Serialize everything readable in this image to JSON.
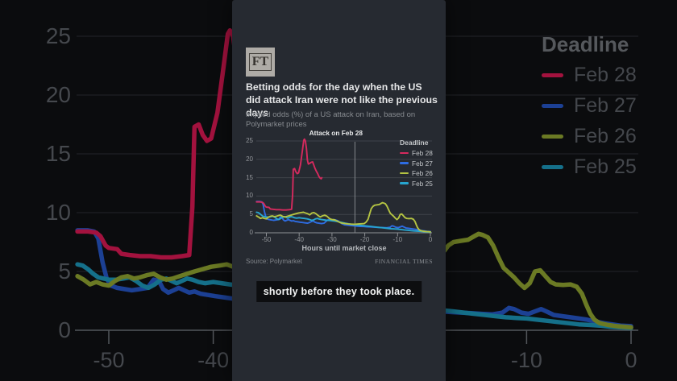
{
  "app": {
    "caption": "shortly before they took place."
  },
  "panel": {
    "logo": "FT",
    "title": "Betting odds for the day when the US did attack Iran were not like the previous days",
    "subtitle": "Implied odds (%) of a US attack on Iran, based on Polymarket prices",
    "source": "Source: Polymarket",
    "brand": "FINANCIAL TIMES"
  },
  "colors": {
    "page_bg": "#0b0c0e",
    "panel_bg": "#262a31",
    "caption_bg": "#0d0e10",
    "grid_main": "#3f434a",
    "axis_main": "#8e9195",
    "grid_bg": "#232529",
    "axis_bg": "#53565b",
    "annotation_line": "#85888d",
    "background_series": [
      "#a3123e",
      "#1c4094",
      "#6b7a24",
      "#15708a"
    ]
  },
  "chart_data": {
    "type": "line",
    "title": "Betting odds for the day when the US did attack Iran were not like the previous days",
    "subtitle": "Implied odds (%) of a US attack on Iran, based on Polymarket prices",
    "xlabel": "Hours until market close",
    "ylabel": "Implied odds (%)",
    "xlim": [
      -53,
      0
    ],
    "ylim": [
      0,
      25
    ],
    "xticks": [
      -50,
      -40,
      -30,
      -20,
      -10,
      0
    ],
    "yticks": [
      0,
      5,
      10,
      15,
      20,
      25
    ],
    "grid": true,
    "legend_title": "Deadline",
    "legend_position": "top-right",
    "annotation": {
      "text": "Attack on Feb 28",
      "x": -23
    },
    "series": [
      {
        "name": "Feb 28",
        "color": "#d62a5e",
        "points": [
          [
            -53,
            8.4
          ],
          [
            -52,
            8.4
          ],
          [
            -51.2,
            8.3
          ],
          [
            -50.8,
            8.0
          ],
          [
            -50.3,
            7.2
          ],
          [
            -50,
            7.0
          ],
          [
            -49.2,
            6.9
          ],
          [
            -48.8,
            6.5
          ],
          [
            -48,
            6.4
          ],
          [
            -47,
            6.3
          ],
          [
            -46,
            6.3
          ],
          [
            -45,
            6.2
          ],
          [
            -44,
            6.2
          ],
          [
            -43,
            6.3
          ],
          [
            -42.3,
            6.4
          ],
          [
            -42,
            10.5
          ],
          [
            -41.8,
            17.3
          ],
          [
            -41.4,
            17.5
          ],
          [
            -41,
            16.6
          ],
          [
            -40.6,
            16.1
          ],
          [
            -40.2,
            16.3
          ],
          [
            -39.6,
            18.5
          ],
          [
            -39,
            22.5
          ],
          [
            -38.6,
            25.2
          ],
          [
            -38.4,
            25.5
          ],
          [
            -38.1,
            25.0
          ],
          [
            -37.8,
            23.0
          ],
          [
            -37.5,
            19.8
          ],
          [
            -37.2,
            18.7
          ],
          [
            -36.8,
            18.9
          ],
          [
            -36.3,
            19.2
          ],
          [
            -35.9,
            19.3
          ],
          [
            -35.6,
            18.6
          ],
          [
            -35.2,
            17.6
          ],
          [
            -34.8,
            16.8
          ],
          [
            -34.4,
            16.2
          ],
          [
            -34,
            15.4
          ],
          [
            -33.6,
            14.9
          ],
          [
            -33.3,
            14.7
          ],
          [
            -33.1,
            15.0
          ]
        ]
      },
      {
        "name": "Feb 27",
        "color": "#2e6ce2",
        "points": [
          [
            -53,
            8.5
          ],
          [
            -52,
            8.5
          ],
          [
            -51.4,
            8.4
          ],
          [
            -51,
            7.8
          ],
          [
            -50.6,
            5.8
          ],
          [
            -50.2,
            4.4
          ],
          [
            -49.8,
            3.8
          ],
          [
            -49.2,
            3.6
          ],
          [
            -48.5,
            3.5
          ],
          [
            -47.8,
            3.4
          ],
          [
            -47,
            3.5
          ],
          [
            -46.3,
            3.6
          ],
          [
            -45.7,
            4.3
          ],
          [
            -45.2,
            4.2
          ],
          [
            -44.8,
            3.5
          ],
          [
            -44.3,
            3.2
          ],
          [
            -43.8,
            3.4
          ],
          [
            -43.3,
            3.6
          ],
          [
            -42.8,
            3.4
          ],
          [
            -42.3,
            3.2
          ],
          [
            -41.8,
            3.3
          ],
          [
            -41.2,
            3.1
          ],
          [
            -40.5,
            3.0
          ],
          [
            -39.8,
            2.9
          ],
          [
            -39,
            2.8
          ],
          [
            -38.2,
            2.7
          ],
          [
            -37.5,
            2.6
          ],
          [
            -36.8,
            2.8
          ],
          [
            -36.2,
            3.1
          ],
          [
            -35.7,
            3.2
          ],
          [
            -35.2,
            2.9
          ],
          [
            -34.6,
            2.7
          ],
          [
            -34,
            2.6
          ],
          [
            -33.2,
            2.5
          ],
          [
            -32.4,
            2.6
          ],
          [
            -31.7,
            3.2
          ],
          [
            -31.2,
            3.5
          ],
          [
            -30.6,
            3.6
          ],
          [
            -30.1,
            3.4
          ],
          [
            -29.6,
            3.6
          ],
          [
            -29,
            3.5
          ],
          [
            -28.2,
            3.3
          ],
          [
            -27.6,
            2.9
          ],
          [
            -27,
            2.5
          ],
          [
            -26.2,
            2.2
          ],
          [
            -25.3,
            2.1
          ],
          [
            -24.3,
            2.0
          ],
          [
            -23.3,
            1.9
          ],
          [
            -22.3,
            1.8
          ],
          [
            -21.3,
            1.75
          ],
          [
            -20.3,
            1.7
          ],
          [
            -19.3,
            1.65
          ],
          [
            -18.3,
            1.6
          ],
          [
            -17.3,
            1.55
          ],
          [
            -16.3,
            1.5
          ],
          [
            -15.3,
            1.45
          ],
          [
            -14.3,
            1.4
          ],
          [
            -13.3,
            1.35
          ],
          [
            -12.3,
            1.5
          ],
          [
            -11.7,
            1.9
          ],
          [
            -11.2,
            1.8
          ],
          [
            -10.5,
            1.5
          ],
          [
            -9.8,
            1.4
          ],
          [
            -9.2,
            1.6
          ],
          [
            -8.6,
            1.8
          ],
          [
            -8.1,
            1.6
          ],
          [
            -7.4,
            1.3
          ],
          [
            -6.6,
            1.2
          ],
          [
            -5.8,
            1.1
          ],
          [
            -5,
            1.0
          ],
          [
            -4.2,
            0.9
          ],
          [
            -3.4,
            0.75
          ],
          [
            -2.6,
            0.6
          ],
          [
            -1.8,
            0.5
          ],
          [
            -1,
            0.4
          ],
          [
            0,
            0.35
          ]
        ]
      },
      {
        "name": "Feb 26",
        "color": "#b4c342",
        "points": [
          [
            -53,
            4.6
          ],
          [
            -52.4,
            4.3
          ],
          [
            -51.8,
            3.9
          ],
          [
            -51.2,
            4.1
          ],
          [
            -50.6,
            3.9
          ],
          [
            -50,
            3.8
          ],
          [
            -49.4,
            4.2
          ],
          [
            -48.8,
            4.5
          ],
          [
            -48.2,
            4.6
          ],
          [
            -47.6,
            4.4
          ],
          [
            -47,
            4.5
          ],
          [
            -46.3,
            4.7
          ],
          [
            -45.7,
            4.8
          ],
          [
            -45.1,
            4.5
          ],
          [
            -44.5,
            4.3
          ],
          [
            -43.9,
            4.4
          ],
          [
            -43.2,
            4.6
          ],
          [
            -42.5,
            4.8
          ],
          [
            -41.8,
            5.0
          ],
          [
            -41,
            5.2
          ],
          [
            -40.2,
            5.4
          ],
          [
            -39.4,
            5.5
          ],
          [
            -38.7,
            5.6
          ],
          [
            -38.1,
            5.4
          ],
          [
            -37.4,
            5.2
          ],
          [
            -36.8,
            4.9
          ],
          [
            -36.1,
            5.4
          ],
          [
            -35.5,
            5.5
          ],
          [
            -34.9,
            5.2
          ],
          [
            -34.2,
            4.7
          ],
          [
            -33.6,
            4.3
          ],
          [
            -32.9,
            4.6
          ],
          [
            -32.2,
            4.8
          ],
          [
            -31.5,
            4.5
          ],
          [
            -30.8,
            3.9
          ],
          [
            -30,
            3.6
          ],
          [
            -29.2,
            3.5
          ],
          [
            -28.4,
            3.2
          ],
          [
            -27.6,
            2.8
          ],
          [
            -26.8,
            2.6
          ],
          [
            -26,
            2.5
          ],
          [
            -25,
            2.4
          ],
          [
            -24,
            2.35
          ],
          [
            -23,
            2.3
          ],
          [
            -22,
            2.4
          ],
          [
            -21,
            2.45
          ],
          [
            -20.2,
            2.5
          ],
          [
            -19.6,
            2.9
          ],
          [
            -19,
            3.7
          ],
          [
            -18.5,
            5.2
          ],
          [
            -18,
            6.6
          ],
          [
            -17.5,
            7.2
          ],
          [
            -17,
            7.5
          ],
          [
            -16.3,
            7.6
          ],
          [
            -15.6,
            7.7
          ],
          [
            -15,
            8.0
          ],
          [
            -14.6,
            8.2
          ],
          [
            -14.2,
            8.1
          ],
          [
            -13.7,
            7.9
          ],
          [
            -13.2,
            7.2
          ],
          [
            -12.7,
            6.2
          ],
          [
            -12.2,
            5.3
          ],
          [
            -11.7,
            4.9
          ],
          [
            -11.2,
            4.5
          ],
          [
            -10.7,
            4.0
          ],
          [
            -10.2,
            3.6
          ],
          [
            -9.7,
            4.0
          ],
          [
            -9.2,
            5.0
          ],
          [
            -8.7,
            5.1
          ],
          [
            -8.2,
            4.6
          ],
          [
            -7.7,
            4.1
          ],
          [
            -7.2,
            3.9
          ],
          [
            -6.5,
            3.85
          ],
          [
            -5.8,
            3.9
          ],
          [
            -5.2,
            3.7
          ],
          [
            -4.7,
            3.1
          ],
          [
            -4.3,
            2.2
          ],
          [
            -3.9,
            1.4
          ],
          [
            -3.5,
            0.9
          ],
          [
            -3,
            0.6
          ],
          [
            -2.2,
            0.45
          ],
          [
            -1.4,
            0.35
          ],
          [
            -0.7,
            0.3
          ],
          [
            0,
            0.25
          ]
        ]
      },
      {
        "name": "Feb 25",
        "color": "#27a5cf",
        "points": [
          [
            -53,
            5.6
          ],
          [
            -52.5,
            5.5
          ],
          [
            -52,
            5.2
          ],
          [
            -51.5,
            4.8
          ],
          [
            -51,
            4.5
          ],
          [
            -50.5,
            4.4
          ],
          [
            -50,
            4.3
          ],
          [
            -49.3,
            4.3
          ],
          [
            -48.6,
            4.4
          ],
          [
            -48,
            4.5
          ],
          [
            -47.4,
            4.2
          ],
          [
            -46.8,
            3.8
          ],
          [
            -46.2,
            3.6
          ],
          [
            -45.6,
            3.9
          ],
          [
            -45,
            4.3
          ],
          [
            -44.5,
            4.4
          ],
          [
            -44,
            4.2
          ],
          [
            -43.5,
            4.0
          ],
          [
            -43,
            4.2
          ],
          [
            -42.5,
            4.4
          ],
          [
            -42,
            4.3
          ],
          [
            -41.4,
            4.1
          ],
          [
            -40.8,
            4.0
          ],
          [
            -40,
            4.1
          ],
          [
            -39.2,
            4.0
          ],
          [
            -38.4,
            3.9
          ],
          [
            -37.6,
            3.8
          ],
          [
            -36.8,
            3.6
          ],
          [
            -36.2,
            3.4
          ],
          [
            -35.6,
            3.5
          ],
          [
            -35,
            3.8
          ],
          [
            -34.4,
            3.9
          ],
          [
            -33.8,
            3.7
          ],
          [
            -33.2,
            3.6
          ],
          [
            -32.4,
            3.5
          ],
          [
            -31.6,
            3.4
          ],
          [
            -30.8,
            3.35
          ],
          [
            -30,
            3.3
          ],
          [
            -29,
            3.15
          ],
          [
            -28,
            3.0
          ],
          [
            -27,
            2.8
          ],
          [
            -26,
            2.6
          ],
          [
            -25,
            2.45
          ],
          [
            -24,
            2.3
          ],
          [
            -23,
            2.2
          ],
          [
            -22,
            2.1
          ],
          [
            -21,
            2.0
          ],
          [
            -20,
            1.9
          ],
          [
            -19,
            1.8
          ],
          [
            -18,
            1.7
          ],
          [
            -17,
            1.6
          ],
          [
            -16,
            1.5
          ],
          [
            -15,
            1.4
          ],
          [
            -14,
            1.3
          ],
          [
            -13,
            1.2
          ],
          [
            -12,
            1.1
          ],
          [
            -11,
            1.05
          ],
          [
            -10,
            1.0
          ],
          [
            -9,
            0.9
          ],
          [
            -8,
            0.8
          ],
          [
            -7,
            0.7
          ],
          [
            -6,
            0.6
          ],
          [
            -5,
            0.5
          ],
          [
            -4,
            0.45
          ],
          [
            -3,
            0.4
          ],
          [
            -2,
            0.3
          ],
          [
            -1,
            0.25
          ],
          [
            0,
            0.2
          ]
        ]
      }
    ]
  }
}
